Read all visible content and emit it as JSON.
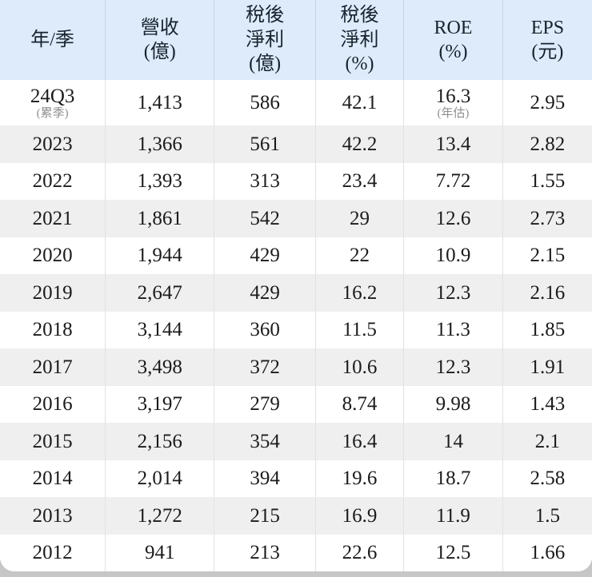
{
  "chart_data": {
    "type": "table",
    "title": "",
    "columns": [
      "年/季",
      "營收(億)",
      "稅後淨利(億)",
      "稅後淨利(%)",
      "ROE(%)",
      "EPS(元)"
    ],
    "categories": [
      "24Q3(累季)",
      "2023",
      "2022",
      "2021",
      "2020",
      "2019",
      "2018",
      "2017",
      "2016",
      "2015",
      "2014",
      "2013",
      "2012"
    ],
    "series": [
      {
        "name": "營收(億)",
        "values": [
          1413,
          1366,
          1393,
          1861,
          1944,
          2647,
          3144,
          3498,
          3197,
          2156,
          2014,
          1272,
          941
        ]
      },
      {
        "name": "稅後淨利(億)",
        "values": [
          586,
          561,
          313,
          542,
          429,
          429,
          360,
          372,
          279,
          354,
          394,
          215,
          213
        ]
      },
      {
        "name": "稅後淨利(%)",
        "values": [
          42.1,
          42.2,
          23.4,
          29,
          22,
          16.2,
          11.5,
          10.6,
          8.74,
          16.4,
          19.6,
          16.9,
          22.6
        ]
      },
      {
        "name": "ROE(%)",
        "values": [
          16.3,
          13.4,
          7.72,
          12.6,
          10.9,
          12.3,
          11.3,
          12.3,
          9.98,
          14,
          18.7,
          11.9,
          12.5
        ]
      },
      {
        "name": "EPS(元)",
        "values": [
          2.95,
          2.82,
          1.55,
          2.73,
          2.15,
          2.16,
          1.85,
          1.91,
          1.43,
          2.1,
          2.58,
          1.5,
          1.66
        ]
      }
    ],
    "annotations": {
      "row_24Q3_period_note": "(累季)",
      "row_24Q3_roe_note": "(年估)"
    },
    "layout": {
      "header_background": "#ddebfa",
      "alt_row_background": "#efefef",
      "grid": "vertical-only"
    }
  },
  "table": {
    "header": [
      "年/季",
      "營收\n(億)",
      "稅後\n淨利\n(億)",
      "稅後\n淨利\n(%)",
      "ROE\n(%)",
      "EPS\n(元)"
    ],
    "rows": [
      {
        "cells": [
          {
            "t": "24Q3",
            "sub": "(累季)"
          },
          {
            "t": "1,413"
          },
          {
            "t": "586"
          },
          {
            "t": "42.1"
          },
          {
            "t": "16.3",
            "sub": "(年估)"
          },
          {
            "t": "2.95"
          }
        ]
      },
      {
        "cells": [
          {
            "t": "2023"
          },
          {
            "t": "1,366"
          },
          {
            "t": "561"
          },
          {
            "t": "42.2"
          },
          {
            "t": "13.4"
          },
          {
            "t": "2.82"
          }
        ]
      },
      {
        "cells": [
          {
            "t": "2022"
          },
          {
            "t": "1,393"
          },
          {
            "t": "313"
          },
          {
            "t": "23.4"
          },
          {
            "t": "7.72"
          },
          {
            "t": "1.55"
          }
        ]
      },
      {
        "cells": [
          {
            "t": "2021"
          },
          {
            "t": "1,861"
          },
          {
            "t": "542"
          },
          {
            "t": "29"
          },
          {
            "t": "12.6"
          },
          {
            "t": "2.73"
          }
        ]
      },
      {
        "cells": [
          {
            "t": "2020"
          },
          {
            "t": "1,944"
          },
          {
            "t": "429"
          },
          {
            "t": "22"
          },
          {
            "t": "10.9"
          },
          {
            "t": "2.15"
          }
        ]
      },
      {
        "cells": [
          {
            "t": "2019"
          },
          {
            "t": "2,647"
          },
          {
            "t": "429"
          },
          {
            "t": "16.2"
          },
          {
            "t": "12.3"
          },
          {
            "t": "2.16"
          }
        ]
      },
      {
        "cells": [
          {
            "t": "2018"
          },
          {
            "t": "3,144"
          },
          {
            "t": "360"
          },
          {
            "t": "11.5"
          },
          {
            "t": "11.3"
          },
          {
            "t": "1.85"
          }
        ]
      },
      {
        "cells": [
          {
            "t": "2017"
          },
          {
            "t": "3,498"
          },
          {
            "t": "372"
          },
          {
            "t": "10.6"
          },
          {
            "t": "12.3"
          },
          {
            "t": "1.91"
          }
        ]
      },
      {
        "cells": [
          {
            "t": "2016"
          },
          {
            "t": "3,197"
          },
          {
            "t": "279"
          },
          {
            "t": "8.74"
          },
          {
            "t": "9.98"
          },
          {
            "t": "1.43"
          }
        ]
      },
      {
        "cells": [
          {
            "t": "2015"
          },
          {
            "t": "2,156"
          },
          {
            "t": "354"
          },
          {
            "t": "16.4"
          },
          {
            "t": "14"
          },
          {
            "t": "2.1"
          }
        ]
      },
      {
        "cells": [
          {
            "t": "2014"
          },
          {
            "t": "2,014"
          },
          {
            "t": "394"
          },
          {
            "t": "19.6"
          },
          {
            "t": "18.7"
          },
          {
            "t": "2.58"
          }
        ]
      },
      {
        "cells": [
          {
            "t": "2013"
          },
          {
            "t": "1,272"
          },
          {
            "t": "215"
          },
          {
            "t": "16.9"
          },
          {
            "t": "11.9"
          },
          {
            "t": "1.5"
          }
        ]
      },
      {
        "cells": [
          {
            "t": "2012"
          },
          {
            "t": "941"
          },
          {
            "t": "213"
          },
          {
            "t": "22.6"
          },
          {
            "t": "12.5"
          },
          {
            "t": "1.66"
          }
        ]
      }
    ]
  },
  "colors": {
    "header_background": "#ddebfa",
    "alt_row_background": "#efefef",
    "header_divider": "#c8d5e3",
    "body_divider": "#e2e2e2",
    "text": "#1b1b1b",
    "note_text": "#909090",
    "page_background": "#c6c6c6"
  }
}
